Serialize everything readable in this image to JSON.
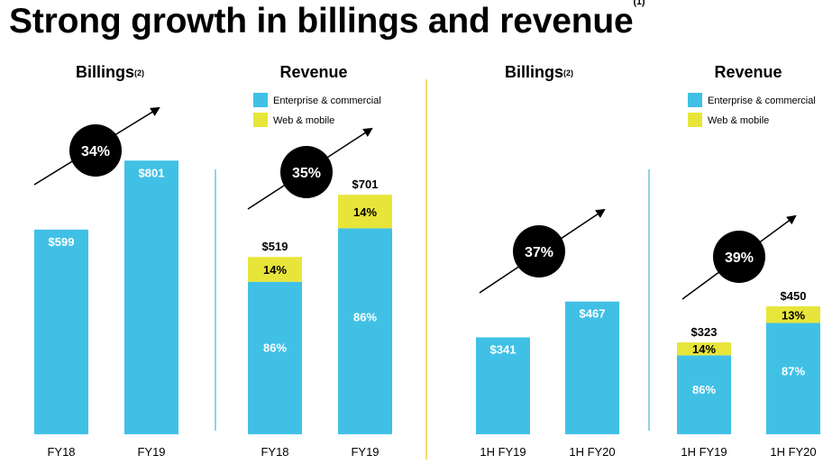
{
  "title": "Strong growth in billings and revenue",
  "title_footnote": "(1)",
  "colors": {
    "enterprise": "#41c0e6",
    "web": "#e8e53a",
    "divider_blue": "#6cc4e6",
    "divider_yellow": "#f2cf3a",
    "circle": "#000000",
    "text": "#000000"
  },
  "legend": {
    "enterprise": "Enterprise & commercial",
    "web": "Web & mobile"
  },
  "chart_data": [
    {
      "type": "bar",
      "title": "Billings",
      "title_footnote": "(2)",
      "categories": [
        "FY18",
        "FY19"
      ],
      "values": [
        599,
        801
      ],
      "value_labels": [
        "$599",
        "$801"
      ],
      "growth_label": "34%",
      "ylim": [
        0,
        850
      ]
    },
    {
      "type": "bar",
      "stacked": true,
      "title": "Revenue",
      "categories": [
        "FY18",
        "FY19"
      ],
      "totals": [
        519,
        701
      ],
      "total_labels": [
        "$519",
        "$701"
      ],
      "series": [
        {
          "name": "Enterprise & commercial",
          "share_pct": [
            86,
            86
          ],
          "labels": [
            "86%",
            "86%"
          ]
        },
        {
          "name": "Web & mobile",
          "share_pct": [
            14,
            14
          ],
          "labels": [
            "14%",
            "14%"
          ]
        }
      ],
      "growth_label": "35%",
      "ylim": [
        0,
        850
      ]
    },
    {
      "type": "bar",
      "title": "Billings",
      "title_footnote": "(2)",
      "categories": [
        "1H FY19",
        "1H FY20"
      ],
      "values": [
        341,
        467
      ],
      "value_labels": [
        "$341",
        "$467"
      ],
      "growth_label": "37%",
      "ylim": [
        0,
        605
      ]
    },
    {
      "type": "bar",
      "stacked": true,
      "title": "Revenue",
      "categories": [
        "1H FY19",
        "1H FY20"
      ],
      "totals": [
        323,
        450
      ],
      "total_labels": [
        "$323",
        "$450"
      ],
      "series": [
        {
          "name": "Enterprise & commercial",
          "share_pct": [
            86,
            87
          ],
          "labels": [
            "86%",
            "87%"
          ]
        },
        {
          "name": "Web & mobile",
          "share_pct": [
            14,
            13
          ],
          "labels": [
            "14%",
            "13%"
          ]
        }
      ],
      "growth_label": "39%",
      "ylim": [
        0,
        605
      ]
    }
  ]
}
